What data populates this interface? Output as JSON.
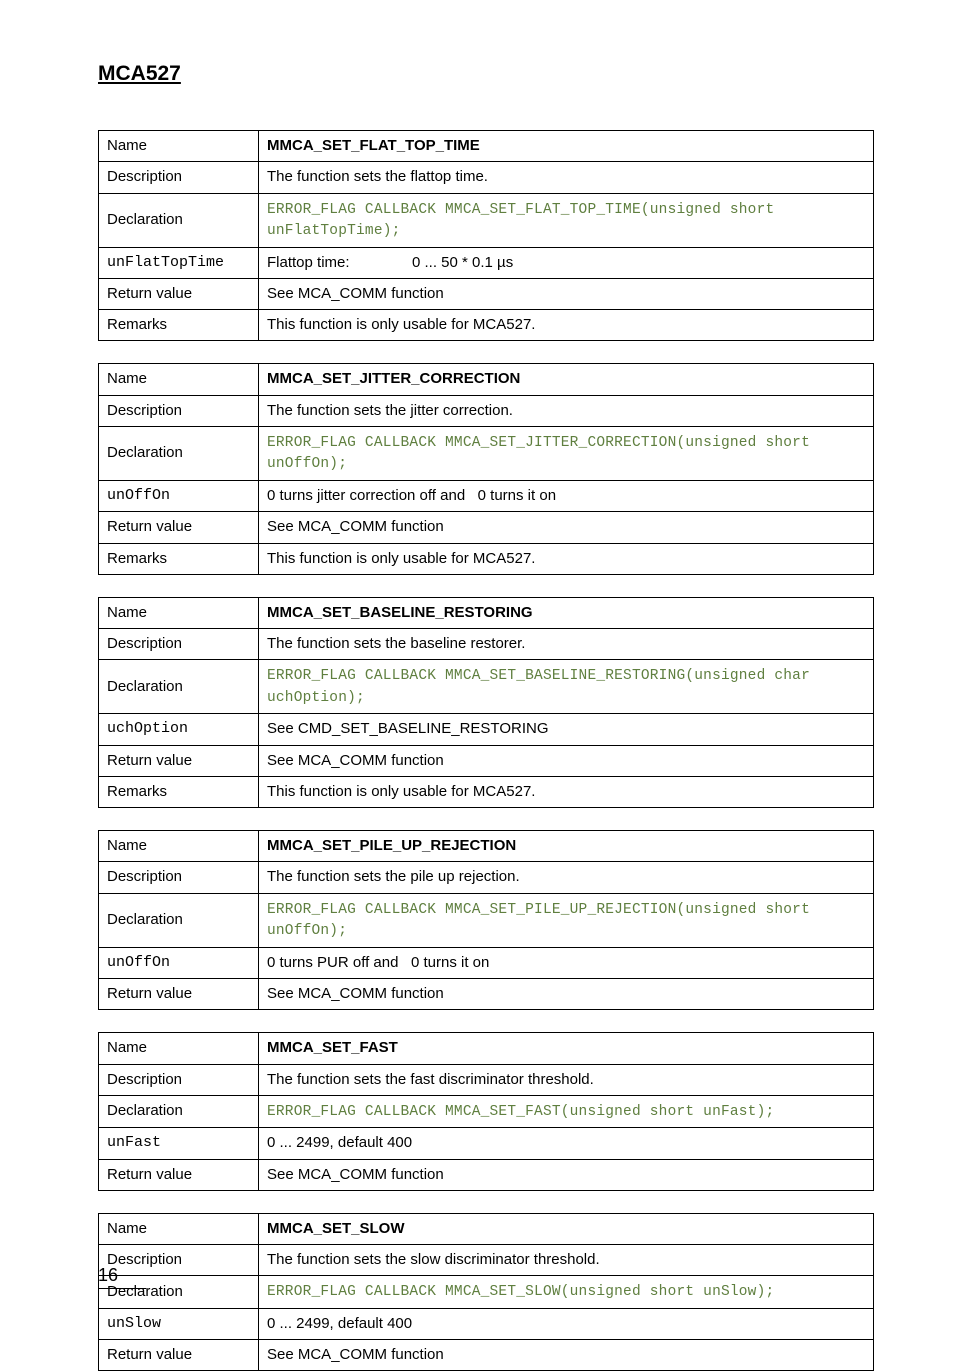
{
  "doc_title": "MCA527",
  "page_number": "16",
  "labels": {
    "name": "Name",
    "description": "Description",
    "declaration": "Declaration",
    "return_value": "Return value",
    "remarks": "Remarks"
  },
  "tables": [
    {
      "name": "MMCA_SET_FLAT_TOP_TIME",
      "description": "The function sets the flattop time.",
      "declaration": "ERROR_FLAG CALLBACK MMCA_SET_FLAT_TOP_TIME(unsigned short unFlatTopTime);",
      "params": [
        {
          "name": "unFlatTopTime",
          "value_html": "<span class='lbl'>Flattop time:</span>0 ... 50 * 0.1 µs",
          "cell_class": "flattop-cell"
        }
      ],
      "return_value": "See MCA_COMM function",
      "remarks": "This function is only usable for MCA527."
    },
    {
      "name": "MMCA_SET_JITTER_CORRECTION",
      "description": "The function sets the jitter correction.",
      "declaration": "ERROR_FLAG CALLBACK MMCA_SET_JITTER_CORRECTION(unsigned short unOffOn);",
      "params": [
        {
          "name": "unOffOn",
          "value_html": "0 turns jitter correction off and&nbsp;&nbsp;&nbsp;0 turns it on"
        }
      ],
      "return_value": "See MCA_COMM function",
      "remarks": "This function is only usable for MCA527."
    },
    {
      "name": "MMCA_SET_BASELINE_RESTORING",
      "description": "The function sets the baseline restorer.",
      "declaration": "ERROR_FLAG CALLBACK MMCA_SET_BASELINE_RESTORING(unsigned char uchOption);",
      "params": [
        {
          "name": "uchOption",
          "value_html": "See CMD_SET_BASELINE_RESTORING"
        }
      ],
      "return_value": "See MCA_COMM function",
      "remarks": "This function is only usable for MCA527."
    },
    {
      "name": "MMCA_SET_PILE_UP_REJECTION",
      "description": "The function sets the pile up rejection.",
      "declaration": "ERROR_FLAG CALLBACK MMCA_SET_PILE_UP_REJECTION(unsigned short unOffOn);",
      "params": [
        {
          "name": "unOffOn",
          "value_html": "0 turns PUR off and&nbsp;&nbsp;&nbsp;0 turns it on"
        }
      ],
      "return_value": "See MCA_COMM function",
      "remarks": null
    },
    {
      "name": "MMCA_SET_FAST",
      "description": "The function sets the fast discriminator threshold.",
      "declaration": "ERROR_FLAG CALLBACK MMCA_SET_FAST(unsigned short unFast);",
      "params": [
        {
          "name": "unFast",
          "value_html": "0 ... 2499, default 400"
        }
      ],
      "return_value": "See MCA_COMM function",
      "remarks": null
    },
    {
      "name": "MMCA_SET_SLOW",
      "description": "The function sets the slow discriminator threshold.",
      "declaration": "ERROR_FLAG CALLBACK MMCA_SET_SLOW(unsigned short unSlow);",
      "params": [
        {
          "name": "unSlow",
          "value_html": "0 ... 2499, default 400"
        }
      ],
      "return_value": "See MCA_COMM function",
      "remarks": null
    }
  ]
}
